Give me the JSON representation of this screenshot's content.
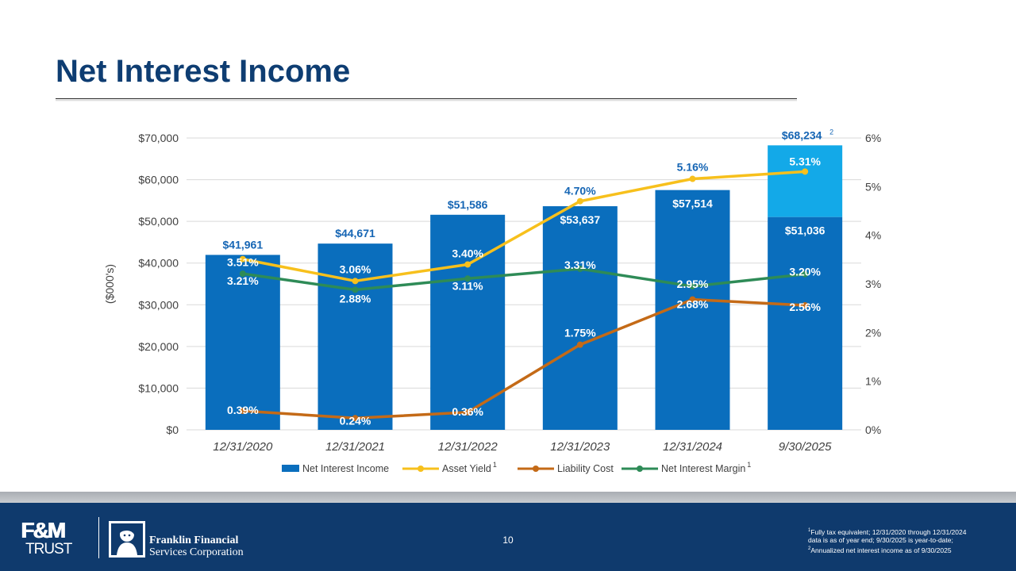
{
  "page": {
    "title": "Net Interest Income",
    "page_number": "10",
    "footnotes": {
      "line1": "Fully tax equivalent; 12/31/2020 through 12/31/2024",
      "line2": "data is as of year end; 9/30/2025 is year-to-date;",
      "line3": "Annualized net interest income as of 9/30/2025",
      "mark1": "1",
      "mark2": "2"
    },
    "footer": {
      "logo_top": "F&M",
      "logo_bottom": "TRUST",
      "company_line1": "Franklin Financial",
      "company_line2": "Services Corporation"
    }
  },
  "chart_data": {
    "type": "bar",
    "ylabel": "($000's)",
    "categories": [
      "12/31/2020",
      "12/31/2021",
      "12/31/2022",
      "12/31/2023",
      "12/31/2024",
      "9/30/2025"
    ],
    "left_axis": {
      "min": 0,
      "max": 70000,
      "step": 10000,
      "tick_labels": [
        "$0",
        "$10,000",
        "$20,000",
        "$30,000",
        "$40,000",
        "$50,000",
        "$60,000",
        "$70,000"
      ]
    },
    "right_axis": {
      "min": 0,
      "max": 6,
      "step": 1,
      "tick_labels": [
        "0%",
        "1%",
        "2%",
        "3%",
        "4%",
        "5%",
        "6%"
      ]
    },
    "bars": {
      "name": "Net Interest Income",
      "values": [
        41961,
        44671,
        51586,
        53637,
        57514,
        51036
      ],
      "labels": [
        "$41,961",
        "$44,671",
        "$51,586",
        "$53,637",
        "$57,514",
        "$51,036"
      ]
    },
    "annualized": {
      "value": 68234,
      "label": "$68,234",
      "superscript": "2"
    },
    "series": [
      {
        "name": "Asset Yield",
        "superscript": "1",
        "values": [
          3.51,
          3.06,
          3.4,
          4.7,
          5.16,
          5.31
        ],
        "labels": [
          "3.51%",
          "3.06%",
          "3.40%",
          "4.70%",
          "5.16%",
          "5.31%"
        ]
      },
      {
        "name": "Liability Cost",
        "superscript": "",
        "values": [
          0.39,
          0.24,
          0.36,
          1.75,
          2.68,
          2.56
        ],
        "labels": [
          "0.39%",
          "0.24%",
          "0.36%",
          "1.75%",
          "2.68%",
          "2.56%"
        ]
      },
      {
        "name": "Net Interest Margin",
        "superscript": "1",
        "values": [
          3.21,
          2.88,
          3.11,
          3.31,
          2.95,
          3.2
        ],
        "labels": [
          "3.21%",
          "2.88%",
          "3.11%",
          "3.31%",
          "2.95%",
          "3.20%"
        ]
      }
    ],
    "legend_position": "bottom",
    "colors": {
      "bar": "#0a6ebd",
      "annualized_bar": "#13a9e8",
      "asset_yield": "#f7c01c",
      "liability_cost": "#c46a17",
      "net_interest_margin": "#2e8b57",
      "label_dark": "#1565b4",
      "title": "#0e3d72",
      "footer": "#0f3a6d"
    }
  }
}
